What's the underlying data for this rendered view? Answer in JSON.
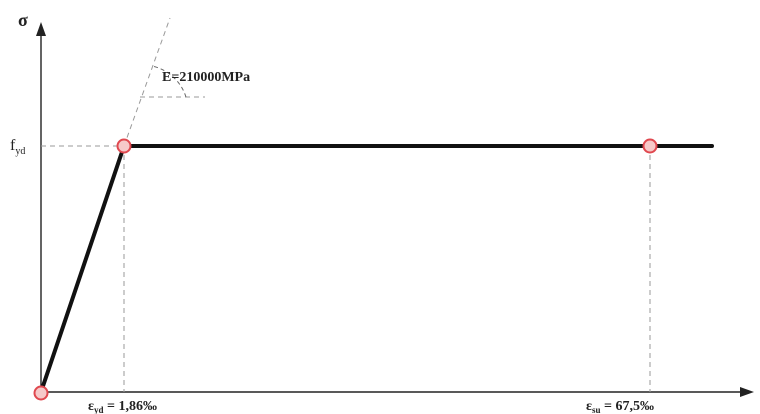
{
  "axes": {
    "y_label": "σ",
    "y_tick_main": "f",
    "y_tick_sub": "yd"
  },
  "annotation": {
    "modulus_text": "E=210000MPa"
  },
  "x_ticks": [
    {
      "main": "ε",
      "sub": "yd",
      "value_text": " = 1,86‰"
    },
    {
      "main": "ε",
      "sub": "su",
      "value_text": " = 67,5‰"
    }
  ],
  "colors": {
    "curve": "#111111",
    "marker_fill": "#f6c9c9",
    "marker_stroke": "#e0484f",
    "guide": "#9a9a9a"
  }
}
